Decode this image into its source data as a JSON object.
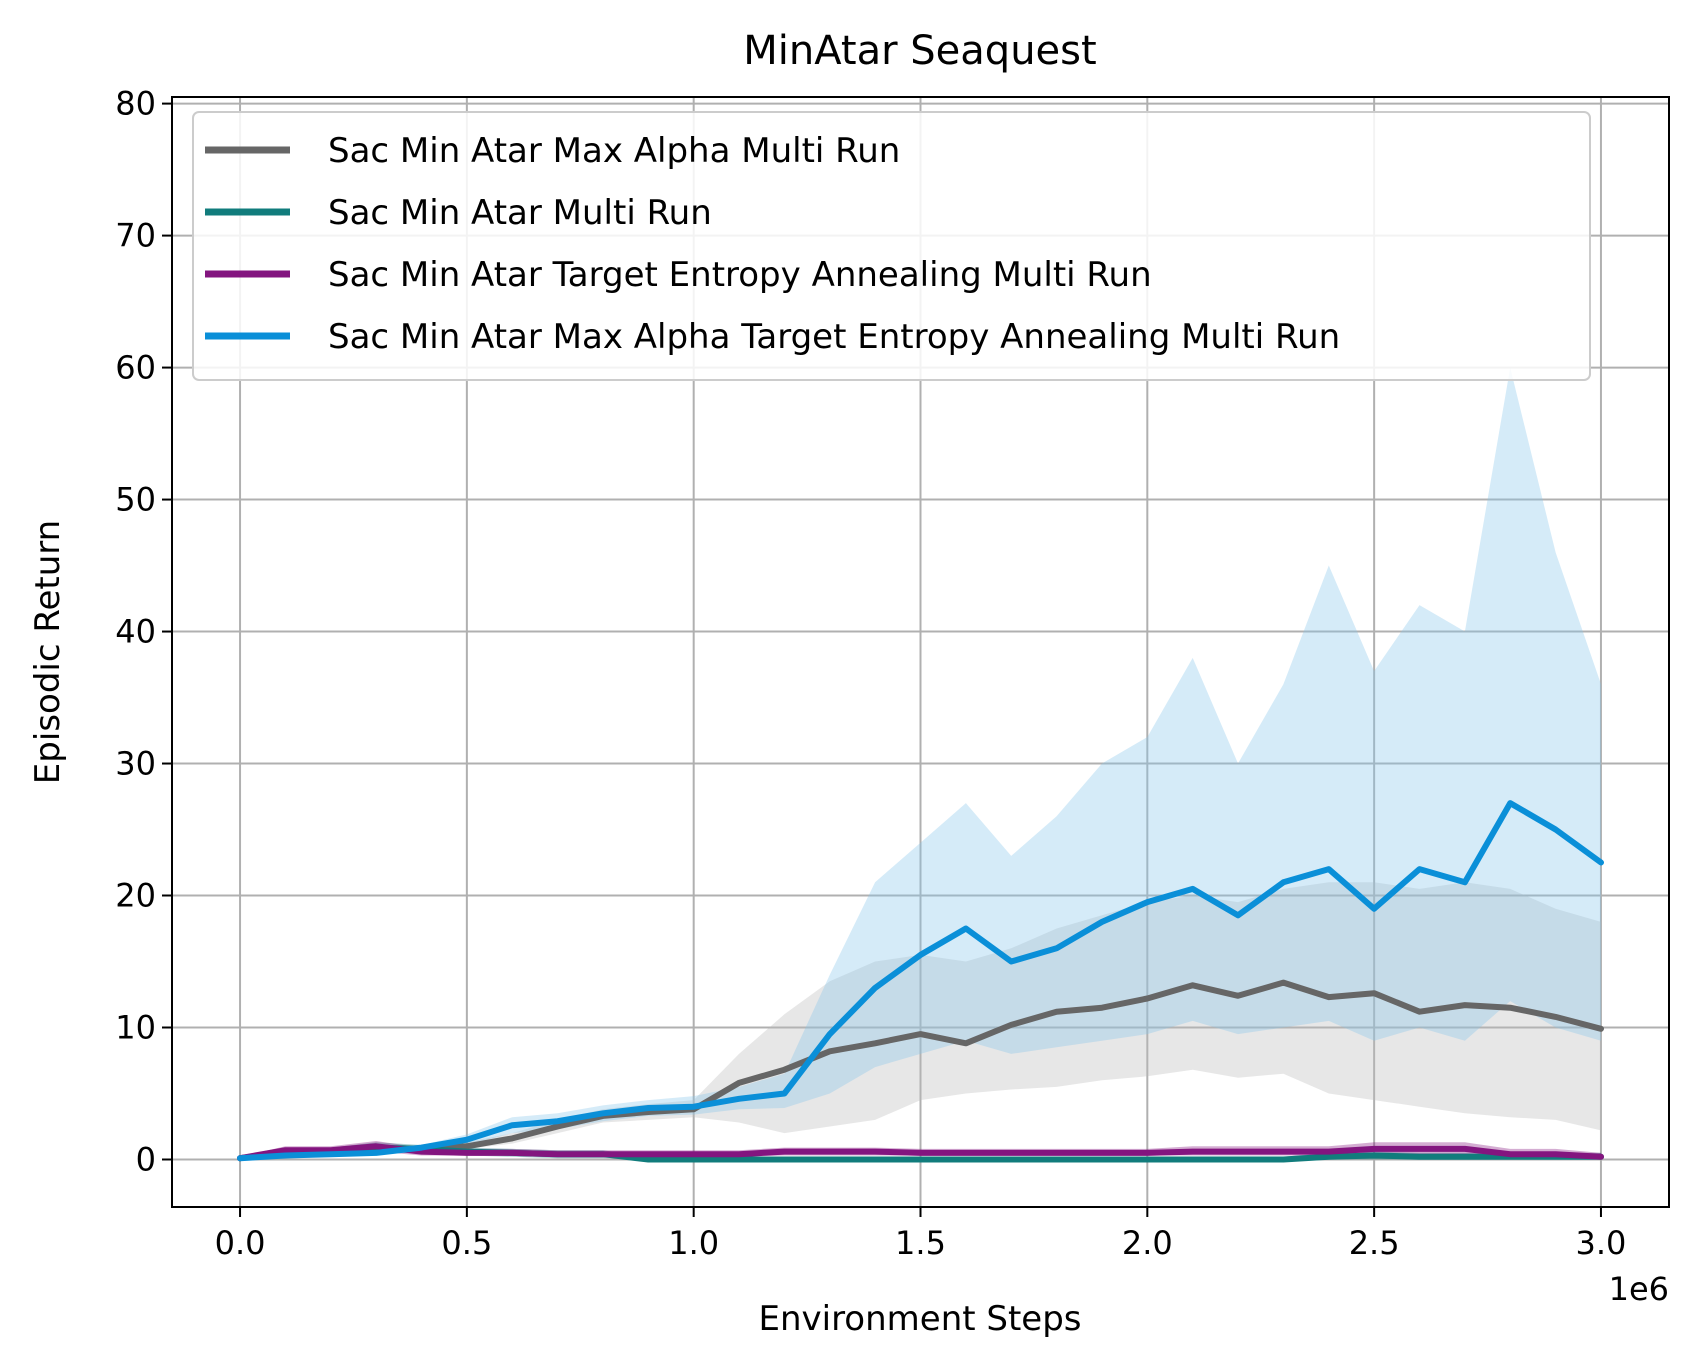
{
  "chart_data": {
    "type": "line",
    "title": "MinAtar Seaquest",
    "xlabel": "Environment Steps",
    "ylabel": "Episodic Return",
    "x_offset_label": "1e6",
    "xlim": [
      -0.15,
      3.15
    ],
    "ylim": [
      -3.6,
      80.5
    ],
    "x_ticks": [
      0.0,
      0.5,
      1.0,
      1.5,
      2.0,
      2.5,
      3.0
    ],
    "x_tick_labels": [
      "0.0",
      "0.5",
      "1.0",
      "1.5",
      "2.0",
      "2.5",
      "3.0"
    ],
    "y_ticks": [
      0,
      10,
      20,
      30,
      40,
      50,
      60,
      70,
      80
    ],
    "y_tick_labels": [
      "0",
      "10",
      "20",
      "30",
      "40",
      "50",
      "60",
      "70",
      "80"
    ],
    "grid": true,
    "legend_position": "upper-left",
    "x": [
      0.0,
      0.1,
      0.2,
      0.3,
      0.4,
      0.5,
      0.6,
      0.7,
      0.8,
      0.9,
      1.0,
      1.1,
      1.2,
      1.3,
      1.4,
      1.5,
      1.6,
      1.7,
      1.8,
      1.9,
      2.0,
      2.1,
      2.2,
      2.3,
      2.4,
      2.5,
      2.6,
      2.7,
      2.8,
      2.9,
      3.0
    ],
    "series": [
      {
        "name": "Sac Min Atar Max Alpha Multi Run",
        "color": "#666666",
        "band_color": "#bbbbbb",
        "values": [
          0.1,
          0.5,
          0.6,
          0.8,
          0.8,
          1.0,
          1.6,
          2.5,
          3.3,
          3.6,
          3.8,
          5.8,
          6.8,
          8.2,
          8.8,
          9.5,
          8.8,
          10.2,
          11.2,
          11.5,
          12.2,
          13.2,
          12.4,
          13.4,
          12.3,
          12.6,
          11.2,
          11.7,
          11.5,
          10.8,
          9.9
        ],
        "lower": [
          0.0,
          0.2,
          0.3,
          0.5,
          0.6,
          0.8,
          1.2,
          2.0,
          2.8,
          3.0,
          3.2,
          2.8,
          2.0,
          2.5,
          3.0,
          4.5,
          5.0,
          5.3,
          5.5,
          6.0,
          6.3,
          6.8,
          6.2,
          6.5,
          5.0,
          4.5,
          4.0,
          3.5,
          3.2,
          3.0,
          2.2
        ],
        "upper": [
          0.2,
          0.8,
          0.9,
          1.1,
          1.1,
          1.3,
          2.0,
          3.0,
          3.8,
          4.2,
          4.5,
          8.0,
          11.0,
          13.5,
          15.0,
          15.5,
          15.0,
          16.0,
          17.5,
          18.5,
          19.5,
          20.0,
          19.5,
          20.5,
          21.0,
          21.0,
          20.5,
          21.0,
          20.5,
          19.0,
          18.0
        ]
      },
      {
        "name": "Sac Min Atar Multi Run",
        "color": "#117c7c",
        "band_color": "#117c7c",
        "values": [
          0.1,
          0.6,
          0.6,
          0.9,
          0.8,
          0.6,
          0.5,
          0.4,
          0.4,
          0.0,
          0.0,
          0.0,
          0.0,
          0.0,
          0.0,
          0.0,
          0.0,
          0.0,
          0.0,
          0.0,
          0.0,
          0.0,
          0.0,
          0.0,
          0.2,
          0.3,
          0.2,
          0.2,
          0.2,
          0.2,
          0.2
        ],
        "lower": [
          0.0,
          0.3,
          0.3,
          0.5,
          0.5,
          0.3,
          0.2,
          0.1,
          0.1,
          0.0,
          0.0,
          0.0,
          0.0,
          0.0,
          0.0,
          0.0,
          0.0,
          0.0,
          0.0,
          0.0,
          0.0,
          0.0,
          0.0,
          0.0,
          0.0,
          0.0,
          0.0,
          0.0,
          0.0,
          0.0,
          0.0
        ],
        "upper": [
          0.2,
          0.9,
          0.9,
          1.3,
          1.1,
          0.9,
          0.8,
          0.7,
          0.7,
          0.2,
          0.2,
          0.2,
          0.2,
          0.2,
          0.2,
          0.2,
          0.2,
          0.2,
          0.2,
          0.2,
          0.2,
          0.2,
          0.2,
          0.2,
          0.5,
          0.6,
          0.5,
          0.5,
          0.5,
          0.5,
          0.5
        ]
      },
      {
        "name": "Sac Min Atar Target Entropy Annealing Multi Run",
        "color": "#83157f",
        "band_color": "#83157f",
        "values": [
          0.1,
          0.7,
          0.7,
          1.0,
          0.6,
          0.5,
          0.5,
          0.4,
          0.4,
          0.4,
          0.4,
          0.4,
          0.6,
          0.6,
          0.6,
          0.5,
          0.5,
          0.5,
          0.5,
          0.5,
          0.5,
          0.6,
          0.6,
          0.6,
          0.6,
          0.8,
          0.8,
          0.8,
          0.4,
          0.4,
          0.2
        ],
        "lower": [
          0.0,
          0.4,
          0.4,
          0.6,
          0.3,
          0.3,
          0.3,
          0.2,
          0.2,
          0.2,
          0.2,
          0.2,
          0.3,
          0.3,
          0.3,
          0.3,
          0.3,
          0.3,
          0.3,
          0.3,
          0.3,
          0.3,
          0.3,
          0.3,
          0.3,
          0.4,
          0.4,
          0.4,
          0.1,
          0.1,
          0.0
        ],
        "upper": [
          0.2,
          1.0,
          1.0,
          1.4,
          0.9,
          0.8,
          0.8,
          0.7,
          0.7,
          0.7,
          0.7,
          0.7,
          0.9,
          0.9,
          0.9,
          0.8,
          0.8,
          0.8,
          0.8,
          0.8,
          0.8,
          1.0,
          1.0,
          1.0,
          1.0,
          1.3,
          1.3,
          1.3,
          0.8,
          0.8,
          0.5
        ]
      },
      {
        "name": "Sac Min Atar Max Alpha Target Entropy Annealing Multi Run",
        "color": "#0a8fd8",
        "band_color": "#87c7ea",
        "values": [
          0.1,
          0.3,
          0.4,
          0.5,
          0.9,
          1.5,
          2.6,
          2.9,
          3.5,
          3.9,
          4.0,
          4.6,
          5.0,
          9.5,
          13.0,
          15.5,
          17.5,
          15.0,
          16.0,
          18.0,
          19.5,
          20.5,
          18.5,
          21.0,
          22.0,
          19.0,
          22.0,
          21.0,
          27.0,
          25.0,
          22.5
        ],
        "lower": [
          0.0,
          0.2,
          0.3,
          0.4,
          0.7,
          1.1,
          2.0,
          2.3,
          2.9,
          3.3,
          3.4,
          3.8,
          3.9,
          5.0,
          7.0,
          8.0,
          9.0,
          8.0,
          8.5,
          9.0,
          9.5,
          10.5,
          9.5,
          10.0,
          10.5,
          9.0,
          10.0,
          9.0,
          12.0,
          10.0,
          9.0
        ],
        "upper": [
          0.2,
          0.5,
          0.6,
          0.7,
          1.1,
          1.9,
          3.2,
          3.5,
          4.1,
          4.5,
          4.8,
          5.5,
          6.5,
          14.0,
          21.0,
          24.0,
          27.0,
          23.0,
          26.0,
          30.0,
          32.0,
          38.0,
          30.0,
          36.0,
          45.0,
          37.0,
          42.0,
          40.0,
          60.0,
          46.0,
          36.0
        ]
      }
    ]
  }
}
